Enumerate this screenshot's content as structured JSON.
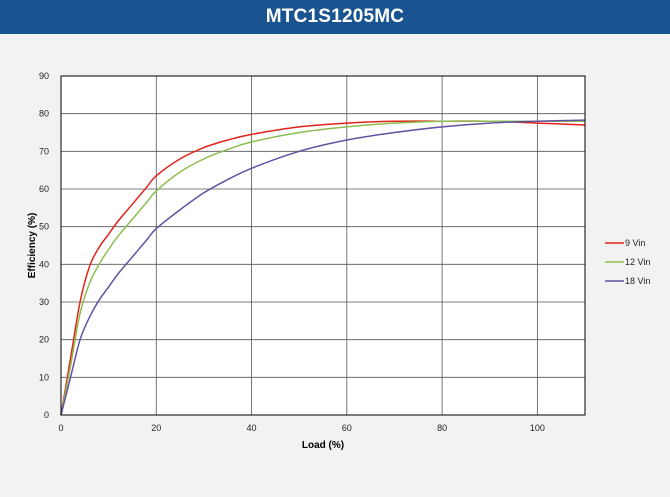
{
  "title": "MTC1S1205MC",
  "chart_data": {
    "type": "line",
    "title": "MTC1S1205MC",
    "xlabel": "Load  (%)",
    "ylabel": "Efficiency (%)",
    "xlim": [
      0,
      110
    ],
    "ylim": [
      0,
      90
    ],
    "xticks": [
      0,
      20,
      40,
      60,
      80,
      100
    ],
    "yticks": [
      0,
      10,
      20,
      30,
      40,
      50,
      60,
      70,
      80,
      90
    ],
    "grid": true,
    "legend_position": "right",
    "series": [
      {
        "name": "9 Vin",
        "color": "#e2231a",
        "x": [
          0,
          2,
          4,
          6,
          8,
          10,
          12,
          15,
          18,
          20,
          25,
          30,
          35,
          40,
          50,
          60,
          70,
          80,
          90,
          100,
          110
        ],
        "y": [
          0,
          15,
          30,
          39.5,
          44.5,
          48,
          51.5,
          56,
          60.5,
          63.5,
          68,
          71,
          73,
          74.5,
          76.5,
          77.5,
          78,
          78,
          78,
          77.5,
          77
        ]
      },
      {
        "name": "12 Vin",
        "color": "#8cbe4f",
        "x": [
          0,
          2,
          4,
          6,
          8,
          10,
          12,
          15,
          18,
          20,
          25,
          30,
          35,
          40,
          50,
          60,
          70,
          80,
          90,
          100,
          110
        ],
        "y": [
          0,
          13,
          27,
          35,
          40,
          44,
          47.5,
          52,
          56.5,
          59.5,
          64.5,
          68,
          70.5,
          72.5,
          75,
          76.5,
          77.5,
          78,
          78,
          78,
          78
        ]
      },
      {
        "name": "18 Vin",
        "color": "#6251a3",
        "x": [
          0,
          2,
          4,
          6,
          8,
          10,
          12,
          15,
          18,
          20,
          25,
          30,
          35,
          40,
          50,
          60,
          70,
          80,
          90,
          100,
          110
        ],
        "y": [
          0,
          10,
          20,
          26,
          30.5,
          34,
          37.5,
          42,
          46.5,
          49.5,
          54.5,
          59,
          62.5,
          65.5,
          70,
          73,
          75,
          76.5,
          77.5,
          78,
          78.3
        ]
      }
    ]
  }
}
